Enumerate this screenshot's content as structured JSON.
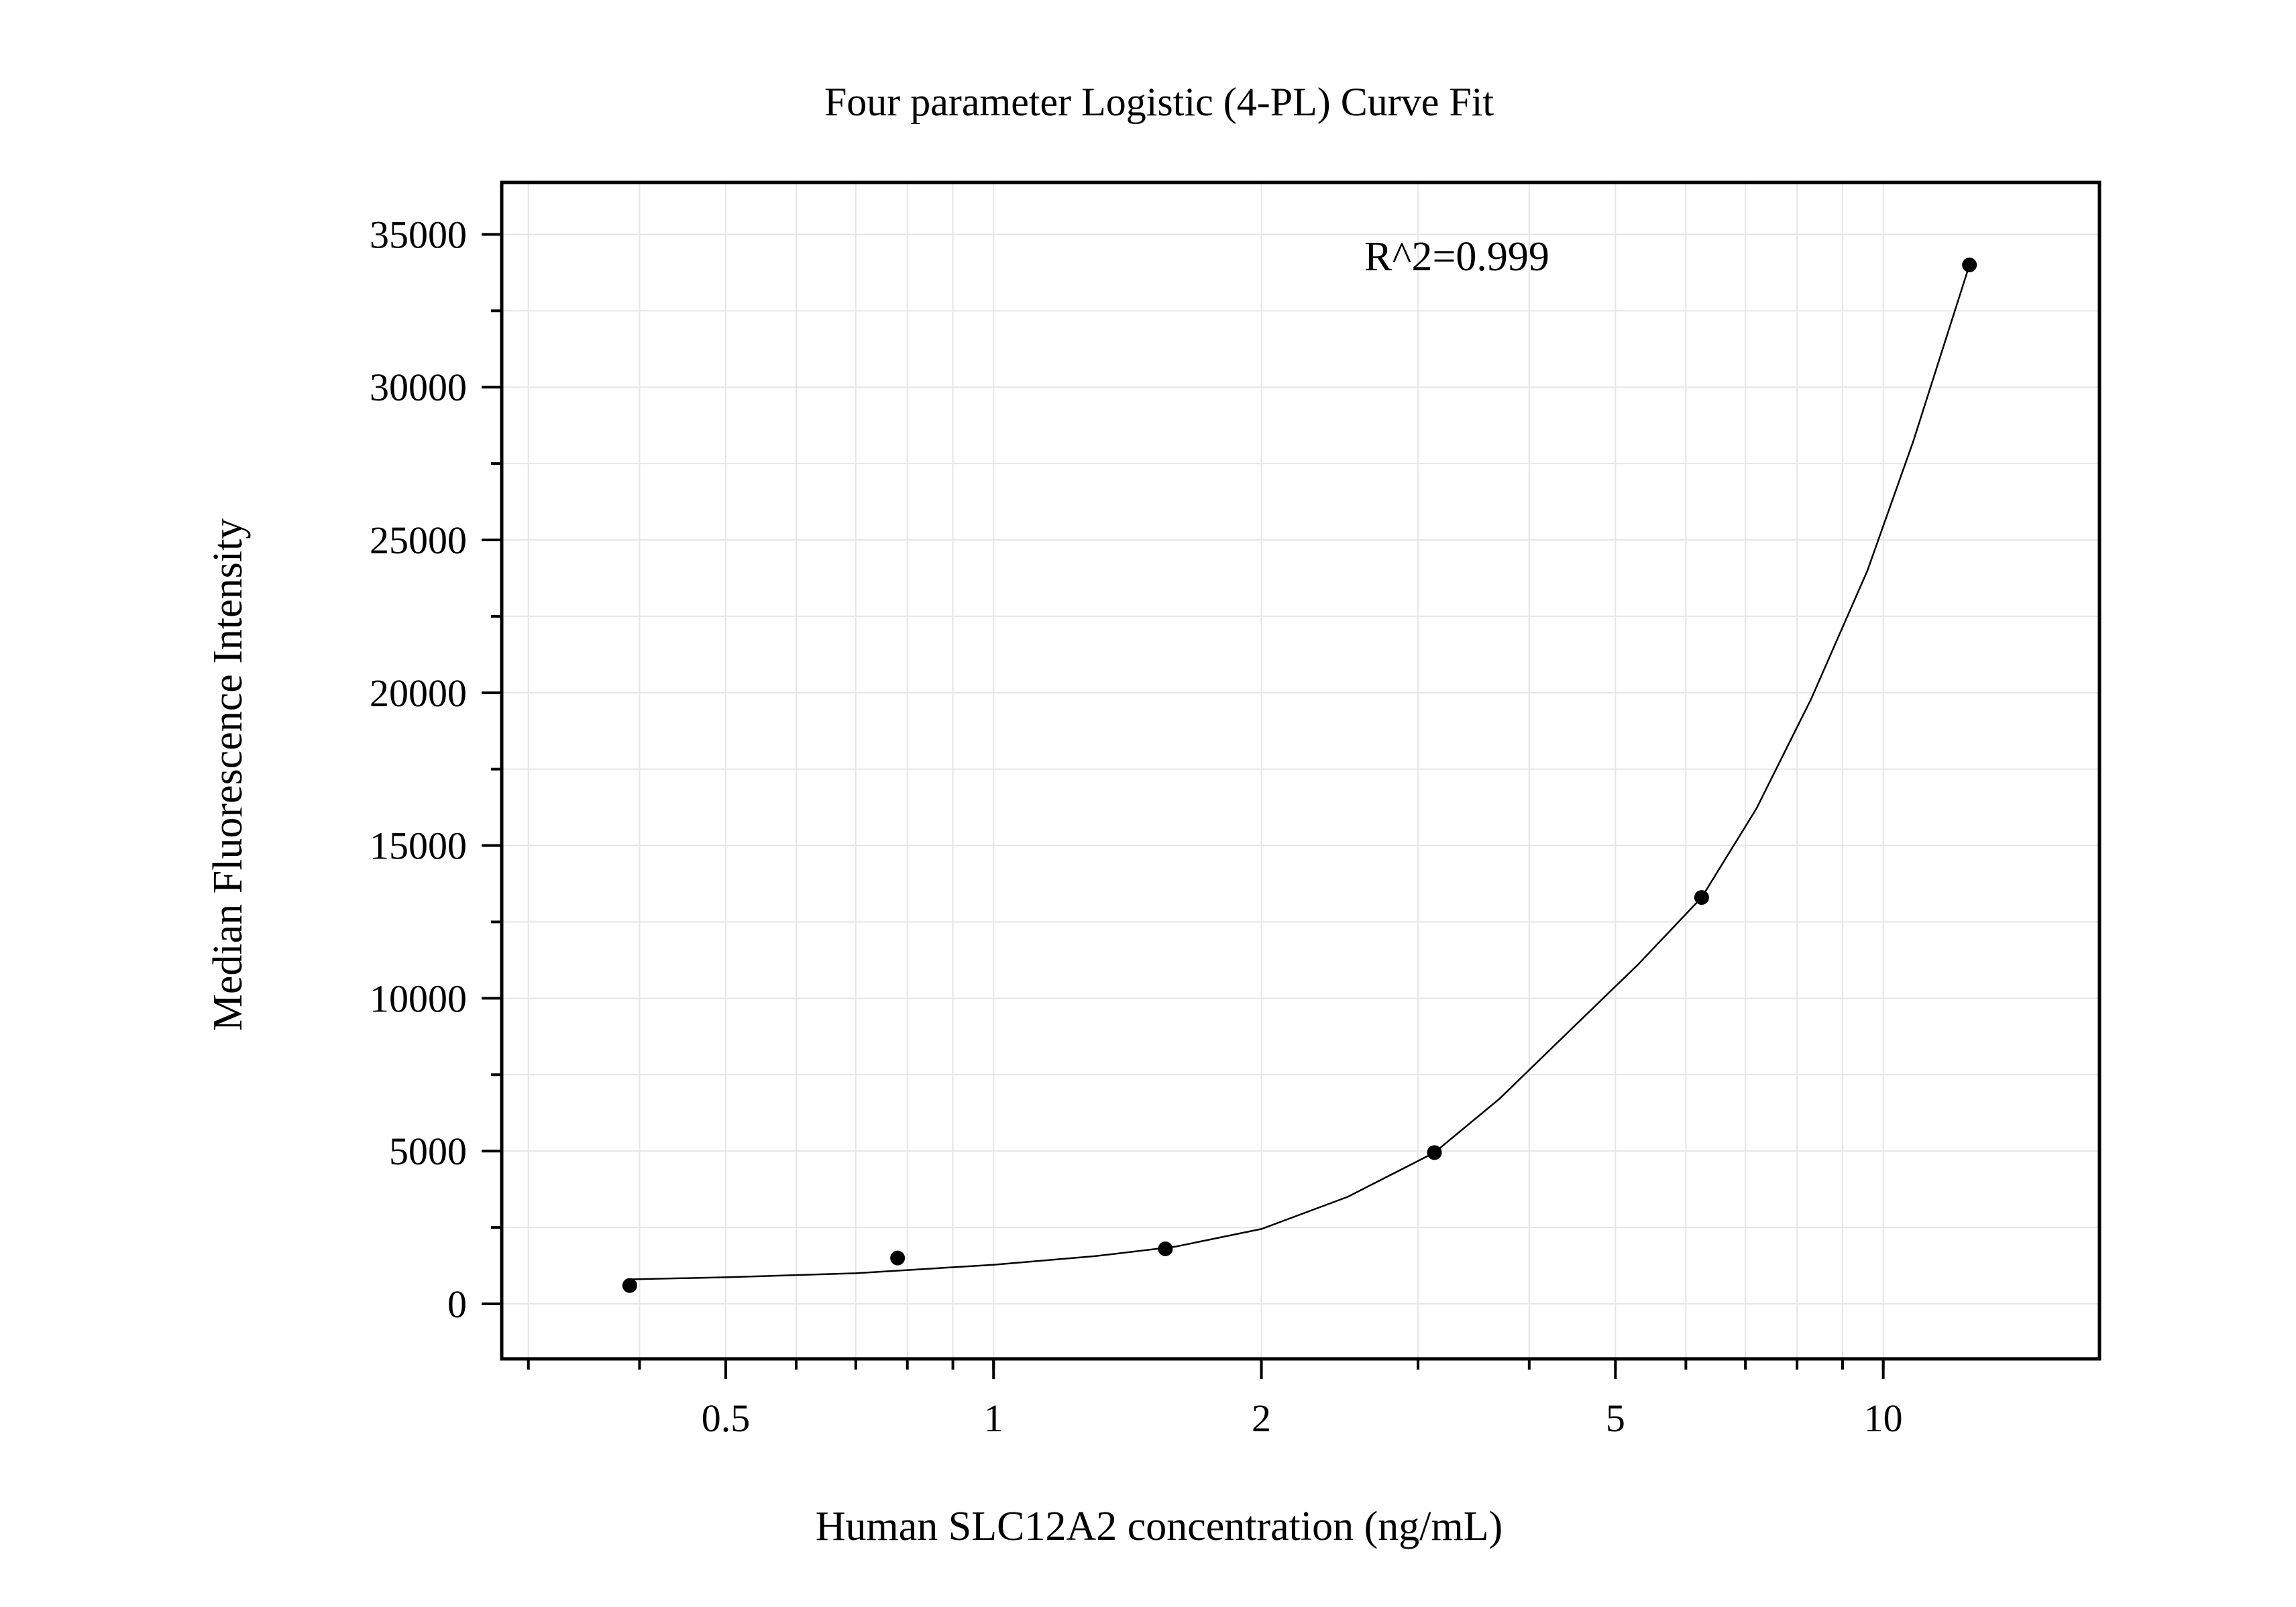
{
  "chart_data": {
    "type": "scatter",
    "title": "Four parameter Logistic (4-PL) Curve Fit",
    "xlabel": "Human SLC12A2 concentration (ng/mL)",
    "ylabel": "Median Fluorescence Intensity",
    "annotation": "R^2=0.999",
    "x_scale": "log",
    "xlim": [
      0.28,
      17.5
    ],
    "ylim": [
      -1800,
      36700
    ],
    "x_ticks": [
      0.5,
      1,
      2,
      5,
      10
    ],
    "x_tick_labels": [
      "0.5",
      "1",
      "2",
      "5",
      "10"
    ],
    "y_ticks": [
      0,
      5000,
      10000,
      15000,
      20000,
      25000,
      30000,
      35000
    ],
    "y_tick_labels": [
      "0",
      "5000",
      "10000",
      "15000",
      "20000",
      "25000",
      "30000",
      "35000"
    ],
    "grid": true,
    "series": [
      {
        "type": "scatter",
        "x": [
          0.39,
          0.78,
          1.56,
          3.13,
          6.25,
          12.5
        ],
        "y": [
          600,
          1500,
          1800,
          4950,
          13300,
          34000
        ]
      },
      {
        "type": "line",
        "x": [
          0.39,
          0.5,
          0.7,
          1.0,
          1.3,
          1.6,
          2.0,
          2.5,
          3.13,
          3.7,
          4.5,
          5.3,
          6.25,
          7.2,
          8.3,
          9.6,
          10.8,
          12.5
        ],
        "y": [
          800,
          870,
          1000,
          1280,
          1560,
          1870,
          2450,
          3500,
          4950,
          6700,
          9100,
          11100,
          13300,
          16200,
          19800,
          24000,
          28200,
          34000
        ]
      }
    ],
    "colors": {
      "line": "#000000",
      "points": "#000000",
      "grid": "#e6e6e6"
    }
  }
}
